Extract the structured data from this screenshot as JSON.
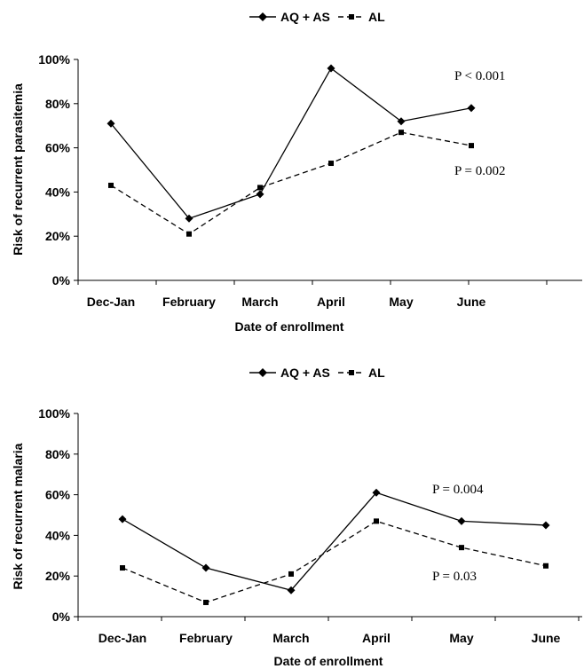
{
  "chart_data": [
    {
      "type": "line",
      "title": "",
      "xlabel": "Date of enrollment",
      "ylabel": "Risk of recurrent parasitemia",
      "categories": [
        "Dec-Jan",
        "February",
        "March",
        "April",
        "May",
        "June"
      ],
      "y_ticks": [
        "0%",
        "20%",
        "40%",
        "60%",
        "80%",
        "100%"
      ],
      "ylim": [
        0,
        100
      ],
      "legend": {
        "placement": "top-center",
        "entries": [
          "AQ + AS",
          "AL"
        ]
      },
      "series": [
        {
          "name": "AQ + AS",
          "style": "solid-diamond",
          "values": [
            71,
            28,
            39,
            96,
            72,
            78
          ]
        },
        {
          "name": "AL",
          "style": "dashed-square",
          "values": [
            43,
            21,
            42,
            53,
            67,
            61
          ]
        }
      ],
      "annotations": [
        "P < 0.001",
        "P = 0.002"
      ],
      "grid": false
    },
    {
      "type": "line",
      "title": "",
      "xlabel": "Date of enrollment",
      "ylabel": "Risk of  recurrent malaria",
      "categories": [
        "Dec-Jan",
        "February",
        "March",
        "April",
        "May",
        "June"
      ],
      "y_ticks": [
        "0%",
        "20%",
        "40%",
        "60%",
        "80%",
        "100%"
      ],
      "ylim": [
        0,
        100
      ],
      "legend": {
        "placement": "top-center",
        "entries": [
          "AQ + AS",
          "AL"
        ]
      },
      "series": [
        {
          "name": "AQ + AS",
          "style": "solid-diamond",
          "values": [
            48,
            24,
            13,
            61,
            47,
            45
          ]
        },
        {
          "name": "AL",
          "style": "dashed-square",
          "values": [
            24,
            7,
            21,
            47,
            34,
            25
          ]
        }
      ],
      "annotations": [
        "P = 0.004",
        "P = 0.03"
      ],
      "grid": false
    }
  ],
  "colors": {
    "line": "#000000",
    "background": "#ffffff"
  }
}
